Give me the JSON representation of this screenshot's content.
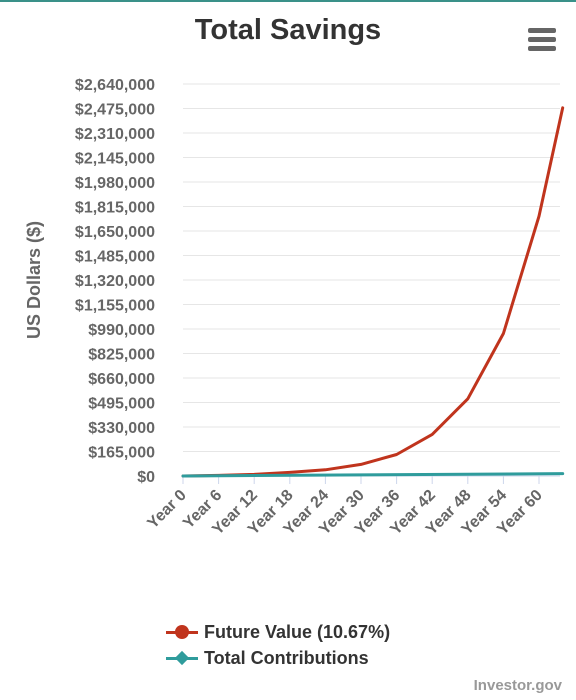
{
  "chart_data": {
    "type": "line",
    "title": "Total Savings",
    "ylabel": "US Dollars ($)",
    "xlabel": "",
    "ylim": [
      0,
      2640000
    ],
    "y_tick_labels": [
      "$0",
      "$165,000",
      "$330,000",
      "$495,000",
      "$660,000",
      "$825,000",
      "$990,000",
      "$1,155,000",
      "$1,320,000",
      "$1,485,000",
      "$1,650,000",
      "$1,815,000",
      "$1,980,000",
      "$2,145,000",
      "$2,310,000",
      "$2,475,000",
      "$2,640,000"
    ],
    "x_tick_labels": [
      "Year 0",
      "Year 6",
      "Year 12",
      "Year 18",
      "Year 24",
      "Year 30",
      "Year 36",
      "Year 42",
      "Year 48",
      "Year 54",
      "Year 60"
    ],
    "x_range": [
      0,
      64
    ],
    "grid": true,
    "legend_position": "bottom",
    "series": [
      {
        "name": "Future Value (10.67%)",
        "color": "#c0341d",
        "marker": "circle",
        "x": [
          0,
          6,
          12,
          18,
          24,
          30,
          36,
          42,
          48,
          54,
          60,
          64
        ],
        "values": [
          0,
          4000,
          11000,
          24000,
          42000,
          78000,
          145000,
          280000,
          520000,
          960000,
          1750000,
          2480000
        ]
      },
      {
        "name": "Total Contributions",
        "color": "#2f9c9c",
        "marker": "diamond",
        "x": [
          0,
          64
        ],
        "values": [
          0,
          16000
        ]
      }
    ]
  },
  "credits": "Investor.gov"
}
